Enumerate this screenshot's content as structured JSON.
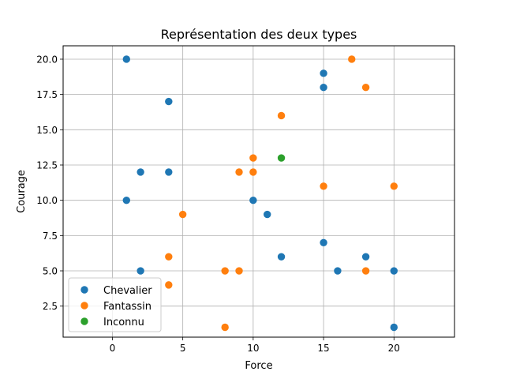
{
  "chart_data": {
    "type": "scatter",
    "title": "Représentation des deux types",
    "xlabel": "Force",
    "ylabel": "Courage",
    "xlim": [
      -3.5,
      24.3
    ],
    "ylim": [
      0.3,
      20.95
    ],
    "xticks": [
      0,
      5,
      10,
      15,
      20
    ],
    "yticks": [
      2.5,
      5.0,
      7.5,
      10.0,
      12.5,
      15.0,
      17.5,
      20.0
    ],
    "xtick_labels": [
      "0",
      "5",
      "10",
      "15",
      "20"
    ],
    "ytick_labels": [
      "2.5",
      "5.0",
      "7.5",
      "10.0",
      "12.5",
      "15.0",
      "17.5",
      "20.0"
    ],
    "grid": true,
    "legend_position": "lower-left",
    "series": [
      {
        "name": "Chevalier",
        "color": "#1f77b4",
        "points": [
          [
            1,
            20
          ],
          [
            15,
            19
          ],
          [
            15,
            18
          ],
          [
            4,
            17
          ],
          [
            2,
            12
          ],
          [
            4,
            12
          ],
          [
            1,
            10
          ],
          [
            10,
            10
          ],
          [
            11,
            9
          ],
          [
            15,
            7
          ],
          [
            12,
            6
          ],
          [
            18,
            6
          ],
          [
            2,
            5
          ],
          [
            16,
            5
          ],
          [
            20,
            5
          ],
          [
            20,
            1
          ]
        ]
      },
      {
        "name": "Fantassin",
        "color": "#ff7f0e",
        "points": [
          [
            17,
            20
          ],
          [
            18,
            18
          ],
          [
            12,
            16
          ],
          [
            10,
            13
          ],
          [
            9,
            12
          ],
          [
            10,
            12
          ],
          [
            15,
            11
          ],
          [
            20,
            11
          ],
          [
            5,
            9
          ],
          [
            4,
            6
          ],
          [
            8,
            5
          ],
          [
            9,
            5
          ],
          [
            18,
            5
          ],
          [
            4,
            4
          ],
          [
            8,
            1
          ]
        ]
      },
      {
        "name": "Inconnu",
        "color": "#2ca02c",
        "points": [
          [
            12,
            13
          ]
        ]
      }
    ]
  }
}
